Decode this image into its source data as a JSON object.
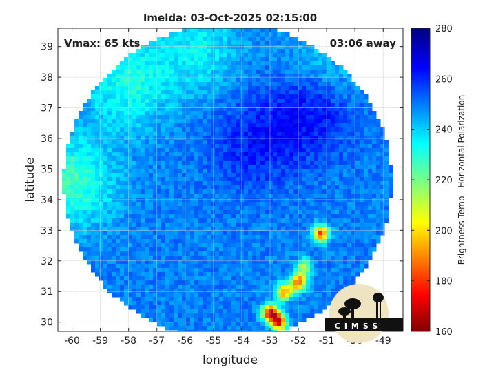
{
  "title": "Imelda: 03-Oct-2025 02:15:00",
  "vmax_label": "Vmax: 65 kts",
  "away_label": "03:06 away",
  "logo_text": "CIMSS",
  "chart_data": {
    "type": "heatmap",
    "xlabel": "longitude",
    "ylabel": "latitude",
    "xlim": [
      -60.5,
      -48.3
    ],
    "ylim": [
      29.7,
      39.6
    ],
    "xticks": [
      -60,
      -59,
      -58,
      -57,
      -56,
      -55,
      -54,
      -53,
      -52,
      -51,
      -50,
      -49
    ],
    "yticks": [
      30,
      31,
      32,
      33,
      34,
      35,
      36,
      37,
      38,
      39
    ],
    "grid": true,
    "swath_center": [
      -54.5,
      34.6
    ],
    "swath_radius_deg_lon": 5.8,
    "colorbar": {
      "label": "Brightness Temp - Horizontal Polarization",
      "min": 160,
      "max": 280,
      "ticks": [
        160,
        180,
        200,
        220,
        240,
        260,
        280
      ],
      "colormap": "jet",
      "placement": "right"
    },
    "features": [
      {
        "name": "warm band west",
        "lon": -60.0,
        "lat": 34.6,
        "value": 228
      },
      {
        "name": "warm patch northwest",
        "lon": -58.0,
        "lat": 37.8,
        "value": 232
      },
      {
        "name": "warm patch north",
        "lon": -55.5,
        "lat": 39.0,
        "value": 236
      },
      {
        "name": "warm patch northeast",
        "lon": -51.0,
        "lat": 38.5,
        "value": 238
      },
      {
        "name": "cold cloud mass",
        "lon": -53.5,
        "lat": 35.8,
        "value": 262
      },
      {
        "name": "cold region north",
        "lon": -51.5,
        "lat": 37.0,
        "value": 265
      },
      {
        "name": "cold cell",
        "lon": -51.2,
        "lat": 32.9,
        "value": 182
      },
      {
        "name": "cold cell",
        "lon": -51.8,
        "lat": 31.8,
        "value": 215
      },
      {
        "name": "cold cell",
        "lon": -52.0,
        "lat": 31.3,
        "value": 188
      },
      {
        "name": "cold cell",
        "lon": -52.5,
        "lat": 31.0,
        "value": 192
      },
      {
        "name": "cold cell",
        "lon": -53.0,
        "lat": 30.3,
        "value": 172
      },
      {
        "name": "cold cell",
        "lon": -52.7,
        "lat": 30.0,
        "value": 175
      }
    ]
  }
}
